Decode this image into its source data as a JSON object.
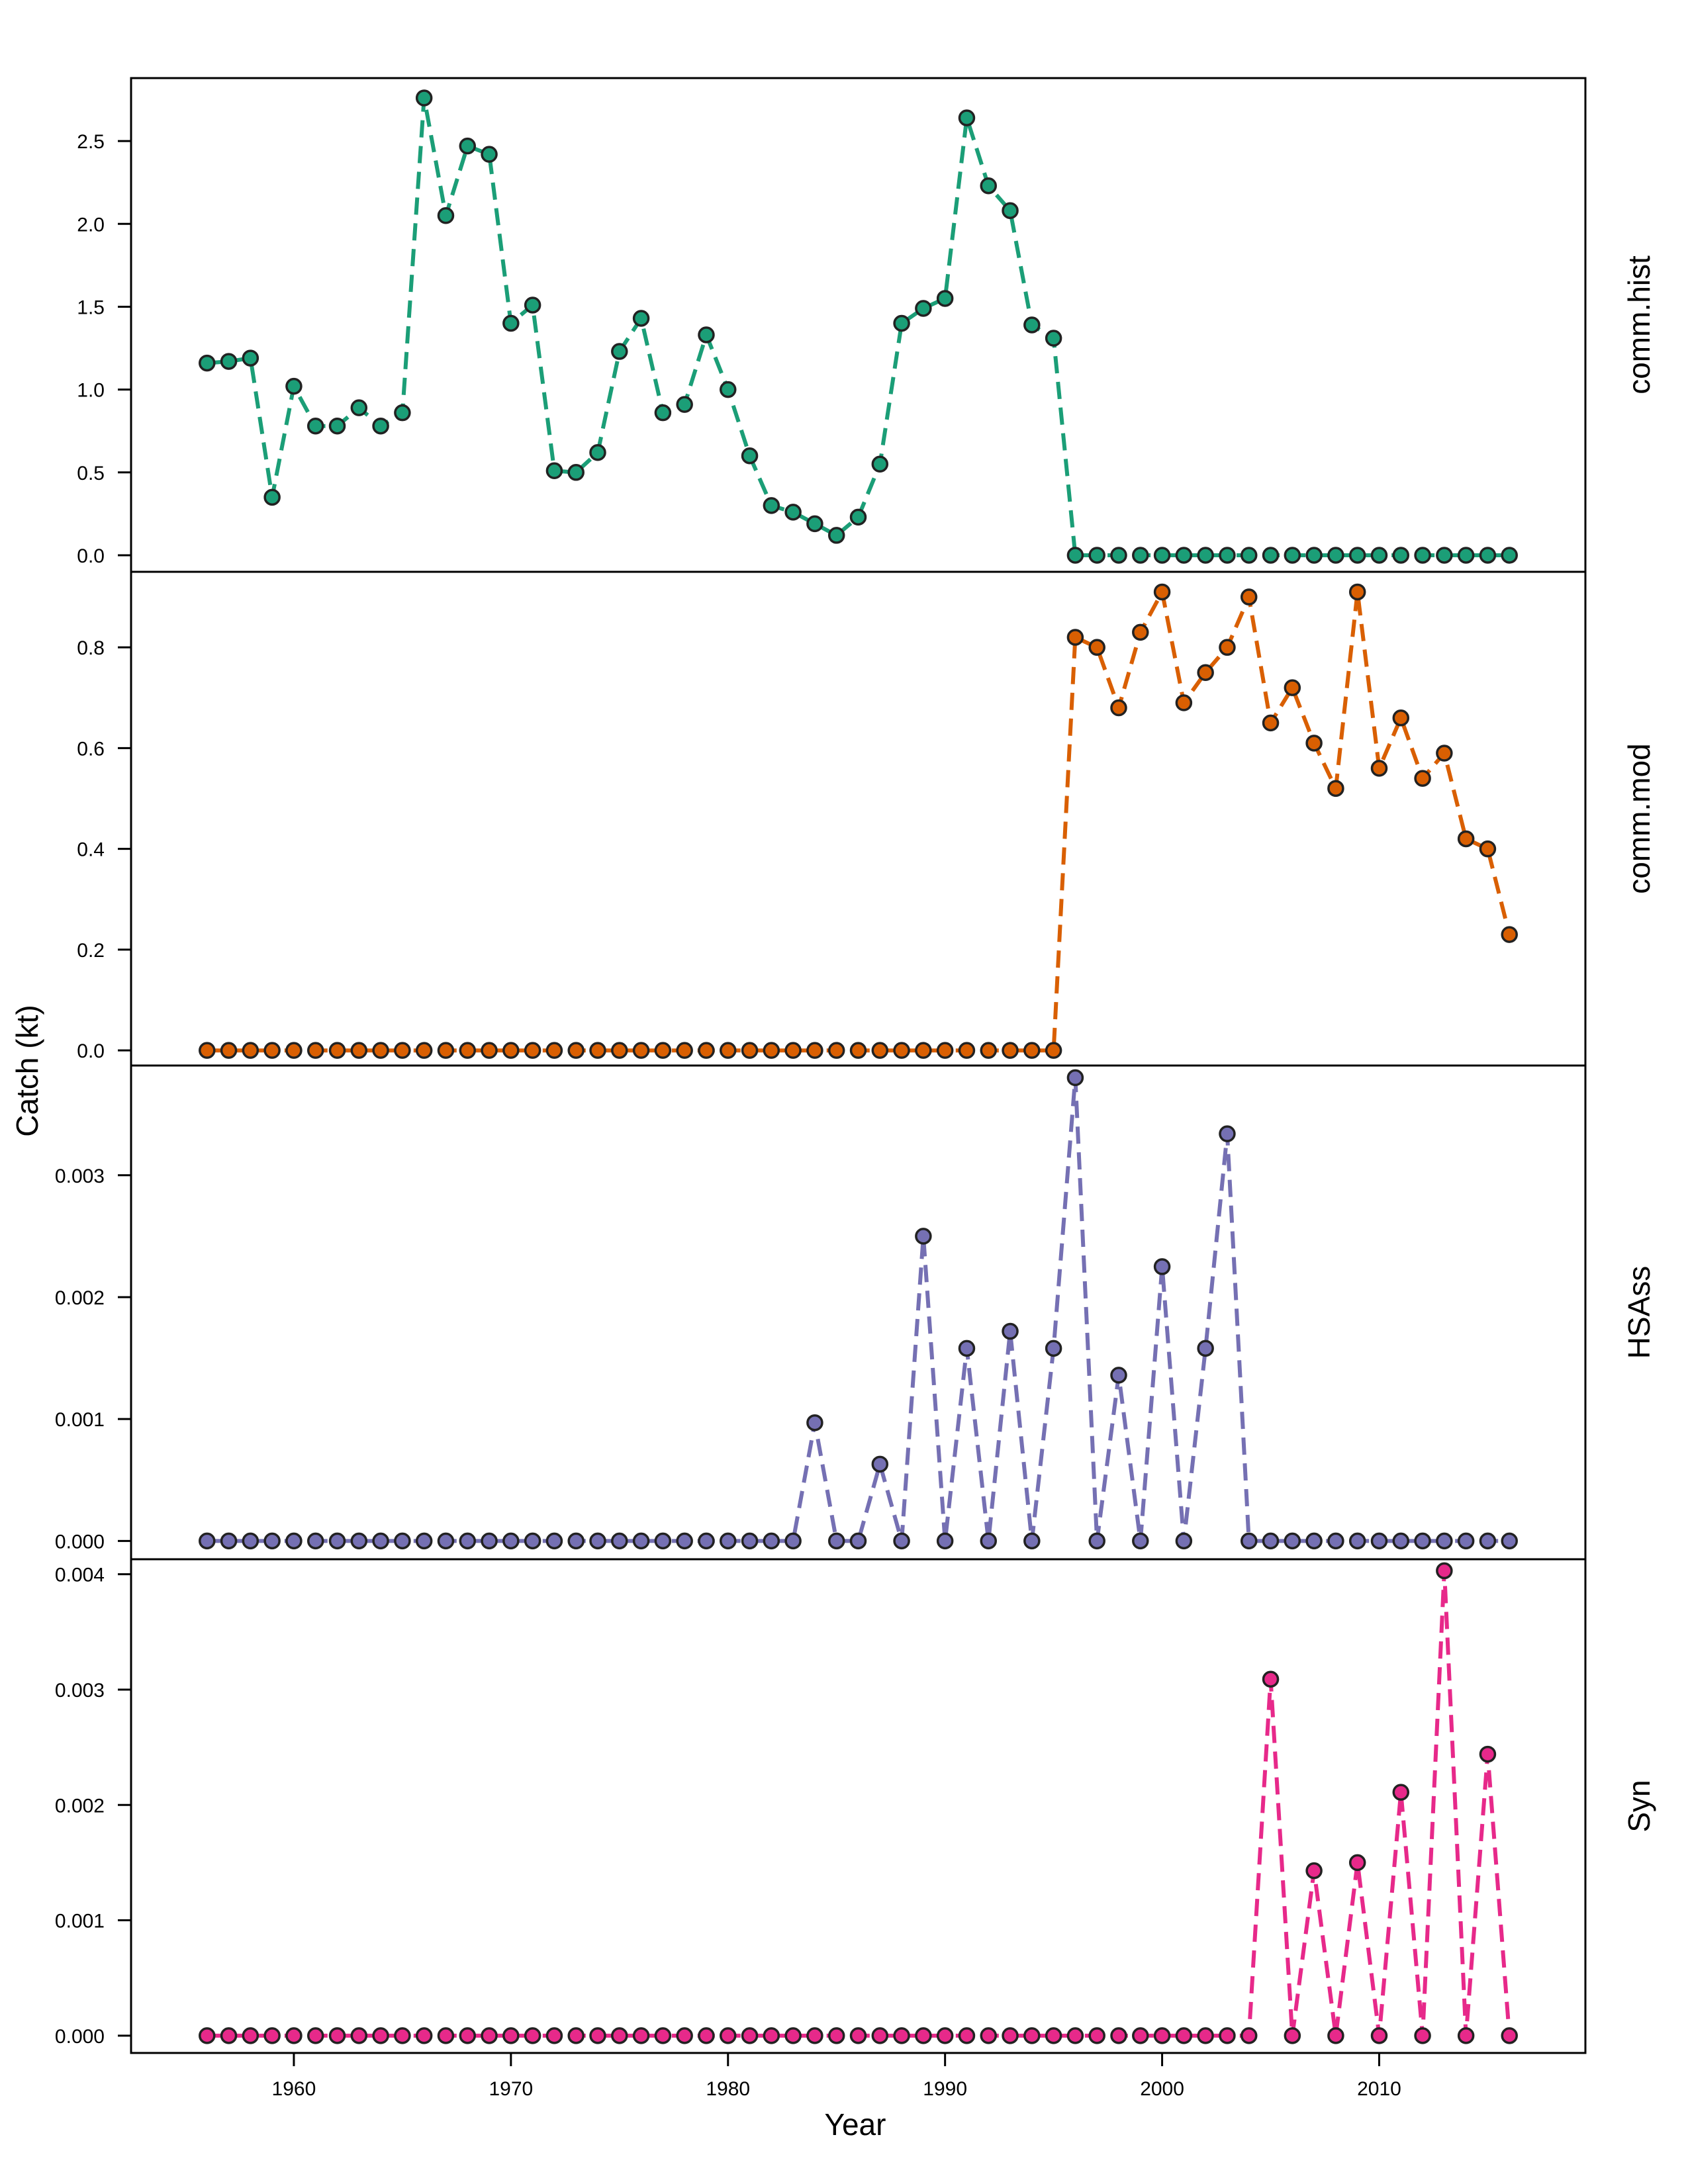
{
  "chart_data": {
    "type": "line",
    "xlabel": "Year",
    "ylabel": "Catch (kt)",
    "x_ticks": [
      1960,
      1970,
      1980,
      1990,
      2000,
      2010
    ],
    "xlim": [
      1952.5,
      2019.5
    ],
    "x": [
      1956,
      1957,
      1958,
      1959,
      1960,
      1961,
      1962,
      1963,
      1964,
      1965,
      1966,
      1967,
      1968,
      1969,
      1970,
      1971,
      1972,
      1973,
      1974,
      1975,
      1976,
      1977,
      1978,
      1979,
      1980,
      1981,
      1982,
      1983,
      1984,
      1985,
      1986,
      1987,
      1988,
      1989,
      1990,
      1991,
      1992,
      1993,
      1994,
      1995,
      1996,
      1997,
      1998,
      1999,
      2000,
      2001,
      2002,
      2003,
      2004,
      2005,
      2006,
      2007,
      2008,
      2009,
      2010,
      2011,
      2012,
      2013,
      2014,
      2015,
      2016
    ],
    "grid": false,
    "legend": "none",
    "panels": [
      {
        "label": "comm.hist",
        "color": "#1b9e77",
        "ylim": [
          -0.1,
          2.88
        ],
        "y_ticks": [
          0.0,
          0.5,
          1.0,
          1.5,
          2.0,
          2.5
        ],
        "y_tick_labels": [
          "0.0",
          "0.5",
          "1.0",
          "1.5",
          "2.0",
          "2.5"
        ],
        "values": [
          1.16,
          1.17,
          1.19,
          0.35,
          1.02,
          0.78,
          0.78,
          0.89,
          0.78,
          0.86,
          2.76,
          2.05,
          2.47,
          2.42,
          1.4,
          1.51,
          0.51,
          0.5,
          0.62,
          1.23,
          1.43,
          0.86,
          0.91,
          1.33,
          1.0,
          0.6,
          0.3,
          0.26,
          0.19,
          0.12,
          0.23,
          0.55,
          1.4,
          1.49,
          1.55,
          2.64,
          2.23,
          2.08,
          1.39,
          1.31,
          0,
          0,
          0,
          0,
          0,
          0,
          0,
          0,
          0,
          0,
          0,
          0,
          0,
          0,
          0,
          0,
          0,
          0,
          0,
          0,
          0
        ]
      },
      {
        "label": "comm.mod",
        "color": "#d95f02",
        "ylim": [
          -0.03,
          0.95
        ],
        "y_ticks": [
          0.0,
          0.2,
          0.4,
          0.6,
          0.8
        ],
        "y_tick_labels": [
          "0.0",
          "0.2",
          "0.4",
          "0.6",
          "0.8"
        ],
        "values": [
          0,
          0,
          0,
          0,
          0,
          0,
          0,
          0,
          0,
          0,
          0,
          0,
          0,
          0,
          0,
          0,
          0,
          0,
          0,
          0,
          0,
          0,
          0,
          0,
          0,
          0,
          0,
          0,
          0,
          0,
          0,
          0,
          0,
          0,
          0,
          0,
          0,
          0,
          0,
          0,
          0.82,
          0.8,
          0.68,
          0.83,
          0.91,
          0.69,
          0.75,
          0.8,
          0.9,
          0.65,
          0.72,
          0.61,
          0.52,
          0.91,
          0.56,
          0.66,
          0.54,
          0.59,
          0.42,
          0.4,
          0.23
        ]
      },
      {
        "label": "HSAss",
        "color": "#7570b3",
        "ylim": [
          -0.00015,
          0.0039
        ],
        "y_ticks": [
          0.0,
          0.001,
          0.002,
          0.003
        ],
        "y_tick_labels": [
          "0.000",
          "0.001",
          "0.002",
          "0.003"
        ],
        "values": [
          0,
          0,
          0,
          0,
          0,
          0,
          0,
          0,
          0,
          0,
          0,
          0,
          0,
          0,
          0,
          0,
          0,
          0,
          0,
          0,
          0,
          0,
          0,
          0,
          0,
          0,
          0,
          0,
          0.00097,
          0,
          0,
          0.00063,
          0,
          0.0025,
          0,
          0.00158,
          0,
          0.00172,
          0,
          0.00158,
          0.0038,
          0,
          0.00136,
          0,
          0.00225,
          0,
          0.00158,
          0.00334,
          0,
          0,
          0,
          0,
          0,
          0,
          0,
          0,
          0,
          0,
          0,
          0,
          0
        ]
      },
      {
        "label": "Syn",
        "color": "#e7298a",
        "ylim": [
          -0.00015,
          0.00413
        ],
        "y_ticks": [
          0.0,
          0.001,
          0.002,
          0.003,
          0.004
        ],
        "y_tick_labels": [
          "0.000",
          "0.001",
          "0.002",
          "0.003",
          "0.004"
        ],
        "values": [
          0,
          0,
          0,
          0,
          0,
          0,
          0,
          0,
          0,
          0,
          0,
          0,
          0,
          0,
          0,
          0,
          0,
          0,
          0,
          0,
          0,
          0,
          0,
          0,
          0,
          0,
          0,
          0,
          0,
          0,
          0,
          0,
          0,
          0,
          0,
          0,
          0,
          0,
          0,
          0,
          0,
          0,
          0,
          0,
          0,
          0,
          0,
          0,
          0,
          0.00309,
          0,
          0.00143,
          0,
          0.0015,
          0,
          0.00211,
          0,
          0.00403,
          0,
          0.00244,
          0
        ]
      }
    ]
  }
}
